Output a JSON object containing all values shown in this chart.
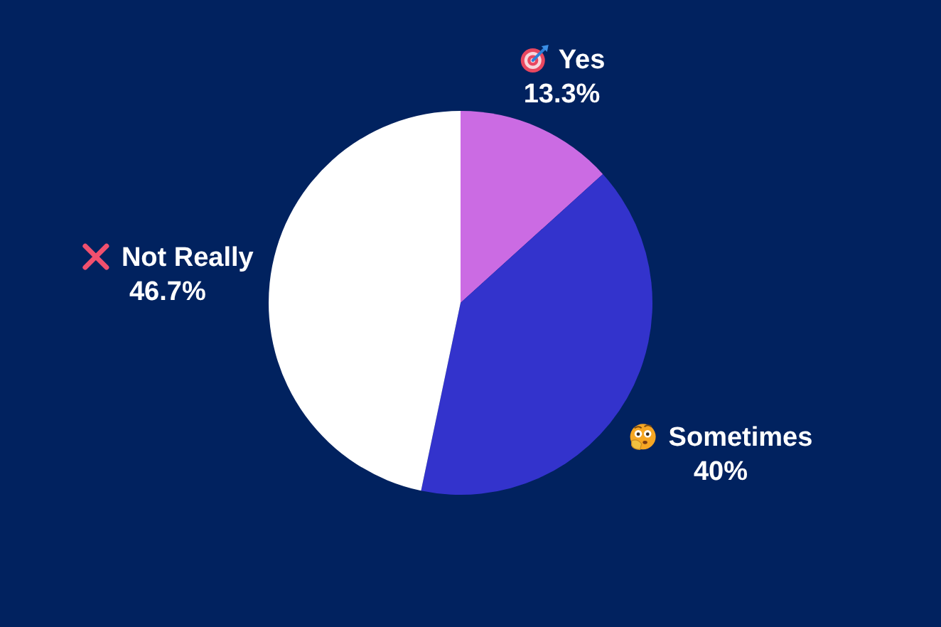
{
  "chart_data": {
    "type": "pie",
    "categories": [
      "Yes",
      "Sometimes",
      "Not Really"
    ],
    "values": [
      13.3,
      40,
      46.7
    ],
    "colors": [
      "#cb6be3",
      "#3333cc",
      "#ffffff"
    ],
    "value_labels": [
      "13.3%",
      "40%",
      "46.7%"
    ]
  }
}
